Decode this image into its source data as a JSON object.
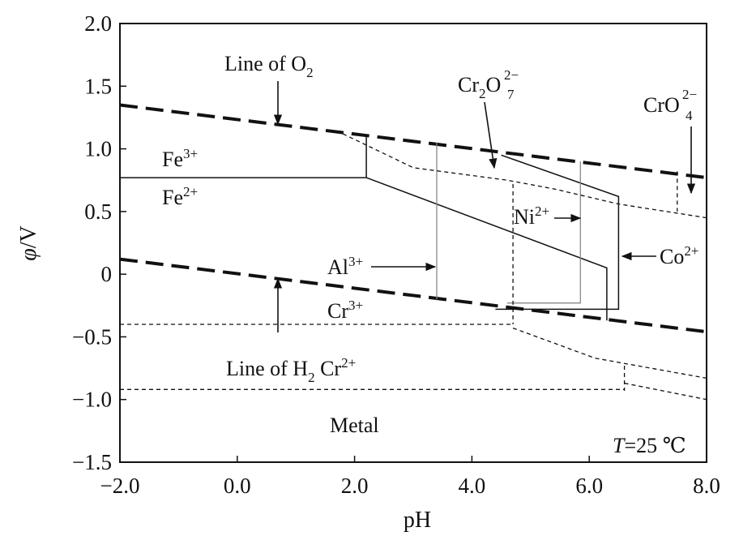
{
  "chart_data": {
    "type": "line",
    "title": "",
    "xlabel": "pH",
    "ylabel_main": "φ",
    "ylabel_unit": "/V",
    "xlim": [
      -2.0,
      8.0
    ],
    "ylim": [
      -1.5,
      2.0
    ],
    "x_ticks": [
      -2.0,
      0.0,
      2.0,
      4.0,
      6.0,
      8.0
    ],
    "x_tick_labels": [
      "−2.0",
      "0.0",
      "2.0",
      "4.0",
      "6.0",
      "8.0"
    ],
    "y_ticks": [
      2.0,
      1.5,
      1.0,
      0.5,
      0,
      -0.5,
      -1.0,
      -1.5
    ],
    "y_tick_labels": [
      "2.0",
      "1.5",
      "1.0",
      "0.5",
      "0",
      "−0.5",
      "−1.0",
      "−1.5"
    ],
    "grid": false,
    "series": [
      {
        "style": "thickdash",
        "points": [
          [
            -2.0,
            1.35
          ],
          [
            8.0,
            0.77
          ]
        ]
      },
      {
        "style": "thickdash",
        "points": [
          [
            -2.0,
            0.12
          ],
          [
            8.0,
            -0.46
          ]
        ]
      },
      {
        "style": "solid",
        "points": [
          [
            -2.0,
            0.77
          ],
          [
            2.2,
            0.77
          ],
          [
            2.2,
            1.1
          ]
        ]
      },
      {
        "style": "solid",
        "points": [
          [
            2.2,
            0.77
          ],
          [
            6.3,
            0.05
          ],
          [
            6.3,
            -0.37
          ]
        ]
      },
      {
        "style": "solid",
        "points": [
          [
            4.5,
            0.95
          ],
          [
            6.5,
            0.62
          ],
          [
            6.5,
            -0.28
          ],
          [
            4.4,
            -0.28
          ]
        ]
      },
      {
        "style": "thin",
        "points": [
          [
            3.4,
            1.05
          ],
          [
            3.4,
            -0.2
          ]
        ]
      },
      {
        "style": "thin",
        "points": [
          [
            5.85,
            0.9
          ],
          [
            5.85,
            -0.23
          ],
          [
            4.6,
            -0.23
          ]
        ]
      },
      {
        "style": "dash",
        "points": [
          [
            1.8,
            1.12
          ],
          [
            3.0,
            0.85
          ],
          [
            4.6,
            0.75
          ],
          [
            5.4,
            0.68
          ],
          [
            6.5,
            0.56
          ],
          [
            8.0,
            0.45
          ]
        ]
      },
      {
        "style": "dash",
        "points": [
          [
            -2.0,
            -0.4
          ],
          [
            4.7,
            -0.4
          ]
        ]
      },
      {
        "style": "dash",
        "points": [
          [
            4.7,
            0.72
          ],
          [
            4.7,
            -0.4
          ]
        ]
      },
      {
        "style": "dash",
        "points": [
          [
            4.7,
            -0.43
          ],
          [
            6.1,
            -0.67
          ],
          [
            8.0,
            -0.83
          ]
        ]
      },
      {
        "style": "dash",
        "points": [
          [
            -2.0,
            -0.92
          ],
          [
            6.6,
            -0.92
          ]
        ]
      },
      {
        "style": "dash",
        "points": [
          [
            6.6,
            -0.73
          ],
          [
            6.6,
            -0.93
          ]
        ]
      },
      {
        "style": "dash",
        "points": [
          [
            6.6,
            -0.87
          ],
          [
            8.0,
            -1.0
          ]
        ]
      },
      {
        "style": "dash",
        "points": [
          [
            7.5,
            0.82
          ],
          [
            7.5,
            0.5
          ]
        ]
      }
    ],
    "labels": {
      "line_o2": "Line of O",
      "line_o2_sub": "2",
      "cr2o7_a": "Cr",
      "cr2o7_sub1": "2",
      "cr2o7_b": "O",
      "cr2o7_sup": "2−",
      "cr2o7_sub2": "7",
      "cro4_a": "CrO",
      "cro4_sup": "2−",
      "cro4_sub": "4",
      "fe3": "Fe",
      "fe3_sup": "3+",
      "fe2": "Fe",
      "fe2_sup": "2+",
      "ni2": "Ni",
      "ni2_sup": "2+",
      "al3": "Al",
      "al3_sup": "3+",
      "co2": "Co",
      "co2_sup": "2+",
      "cr3": "Cr",
      "cr3_sup": "3+",
      "line_h2_a": "Line of H",
      "line_h2_sub": "2",
      "cr2p": " Cr",
      "cr2p_sup": "2+",
      "metal": "Metal",
      "temp_T": "T",
      "temp_rest": "=25 ℃"
    }
  }
}
